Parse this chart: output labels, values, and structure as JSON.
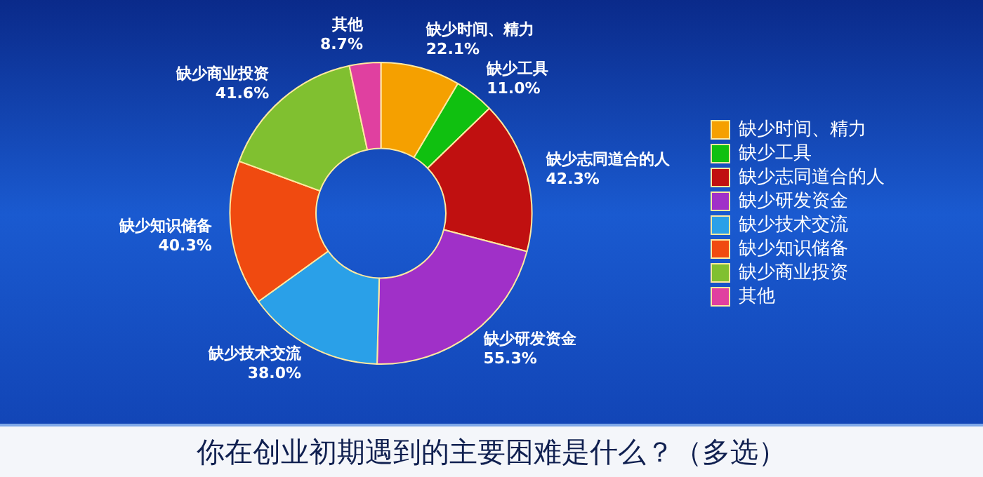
{
  "chart_data": {
    "type": "donut",
    "title": "你在创业初期遇到的主要困难是什么？（多选）",
    "categories": [
      "缺少时间、精力",
      "缺少工具",
      "缺少志同道合的人",
      "缺少研发资金",
      "缺少技术交流",
      "缺少知识储备",
      "缺少商业投资",
      "其他"
    ],
    "values": [
      22.1,
      11.0,
      42.3,
      55.3,
      38.0,
      40.3,
      41.6,
      8.7
    ],
    "colors": [
      "#f5a000",
      "#10c010",
      "#c01010",
      "#a030c8",
      "#2aa0e8",
      "#f04a10",
      "#80c030",
      "#e040a0"
    ],
    "value_labels": [
      "22.1%",
      "11.0%",
      "42.3%",
      "55.3%",
      "38.0%",
      "40.3%",
      "41.6%",
      "8.7%"
    ],
    "legend": "right"
  }
}
